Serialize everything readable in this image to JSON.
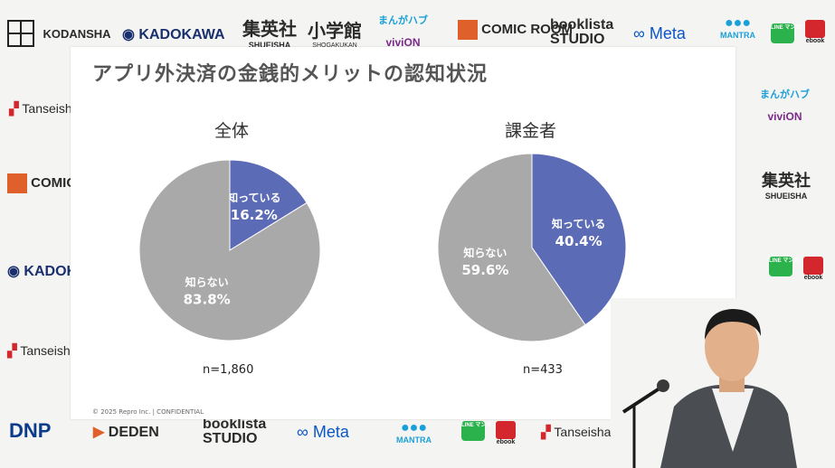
{
  "background_logos": {
    "kodansha": "KODANSHA",
    "kadokawa": "KADOKAWA",
    "shueisha_jp": "集英社",
    "shueisha_en": "SHUEISHA",
    "shogakukan_jp": "小学館",
    "shogakukan_en": "SHOGAKUKAN",
    "manga_hub": "まんがハブ",
    "vivion": "viviON",
    "comic_room": "COMIC ROOM",
    "booklista_top": "booklista",
    "booklista_bottom": "STUDIO",
    "meta": "Meta",
    "mantra": "MANTRA",
    "line_manga": "LINE マンガ",
    "ebook": "ebook",
    "tanseisha": "Tanseisha",
    "dnp": "DNP",
    "deden": "DEDEN"
  },
  "slide": {
    "title": "アプリ外決済の金銭的メリットの認知状況",
    "footer": "© 2025 Repro Inc.  |  CONFIDENTIAL"
  },
  "colors": {
    "known": "#5b6bb5",
    "unknown": "#a9a9a9"
  },
  "chart_data": [
    {
      "type": "pie",
      "title": "全体",
      "note": "n=1,860",
      "slices": [
        {
          "label": "知っている",
          "value": 16.2,
          "display": "16.2%"
        },
        {
          "label": "知らない",
          "value": 83.8,
          "display": "83.8%"
        }
      ]
    },
    {
      "type": "pie",
      "title": "課金者",
      "note": "n=433",
      "slices": [
        {
          "label": "知っている",
          "value": 40.4,
          "display": "40.4%"
        },
        {
          "label": "知らない",
          "value": 59.6,
          "display": "59.6%"
        }
      ]
    }
  ]
}
